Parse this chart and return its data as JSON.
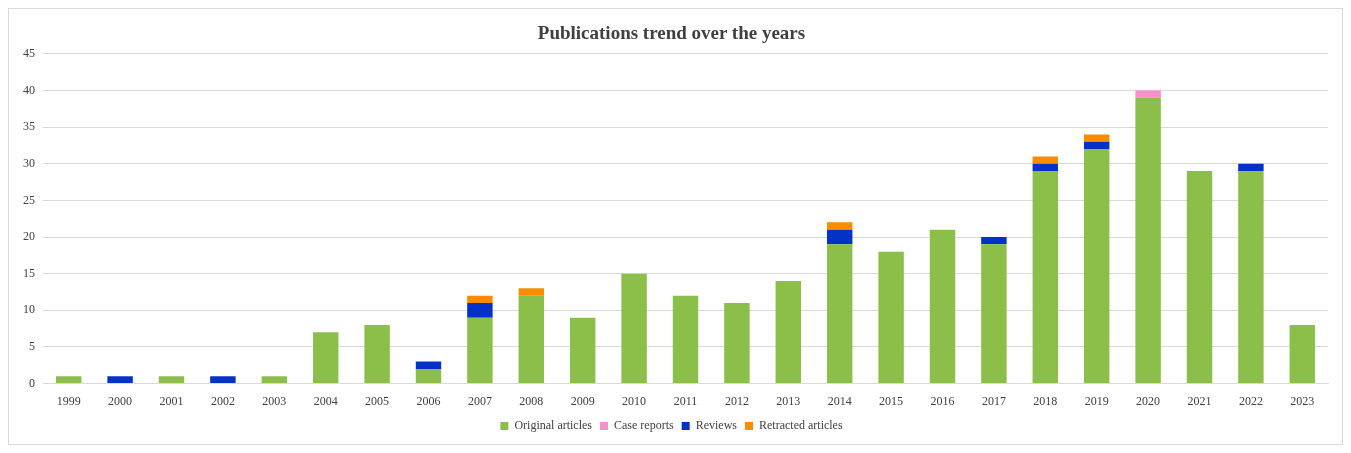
{
  "chart_data": {
    "type": "bar",
    "title": "Publications trend over the years",
    "stacked": true,
    "categories": [
      "1999",
      "2000",
      "2001",
      "2002",
      "2003",
      "2004",
      "2005",
      "2006",
      "2007",
      "2008",
      "2009",
      "2010",
      "2011",
      "2012",
      "2013",
      "2014",
      "2015",
      "2016",
      "2017",
      "2018",
      "2019",
      "2020",
      "2021",
      "2022",
      "2023"
    ],
    "series": [
      {
        "name": "Original articles",
        "color": "#8bbf4a",
        "values": [
          1,
          0,
          1,
          0,
          1,
          7,
          8,
          2,
          9,
          12,
          9,
          15,
          12,
          11,
          14,
          19,
          18,
          21,
          19,
          29,
          32,
          39,
          29,
          29,
          8
        ]
      },
      {
        "name": "Case reports",
        "color": "#f78fc8",
        "values": [
          0,
          0,
          0,
          0,
          0,
          0,
          0,
          0,
          0,
          0,
          0,
          0,
          0,
          0,
          0,
          0,
          0,
          0,
          0,
          0,
          0,
          1,
          0,
          0,
          0
        ]
      },
      {
        "name": "Reviews",
        "color": "#0432c8",
        "values": [
          0,
          1,
          0,
          1,
          0,
          0,
          0,
          1,
          2,
          0,
          0,
          0,
          0,
          0,
          0,
          2,
          0,
          0,
          1,
          1,
          1,
          0,
          0,
          1,
          0
        ]
      },
      {
        "name": "Retracted articles",
        "color": "#fb8c00",
        "values": [
          0,
          0,
          0,
          0,
          0,
          0,
          0,
          0,
          1,
          1,
          0,
          0,
          0,
          0,
          0,
          1,
          0,
          0,
          0,
          1,
          1,
          0,
          0,
          0,
          0
        ]
      }
    ],
    "ylim": [
      0,
      45
    ],
    "yticks": [
      0,
      5,
      10,
      15,
      20,
      25,
      30,
      35,
      40,
      45
    ],
    "grid": "y",
    "legend": "bottom"
  }
}
